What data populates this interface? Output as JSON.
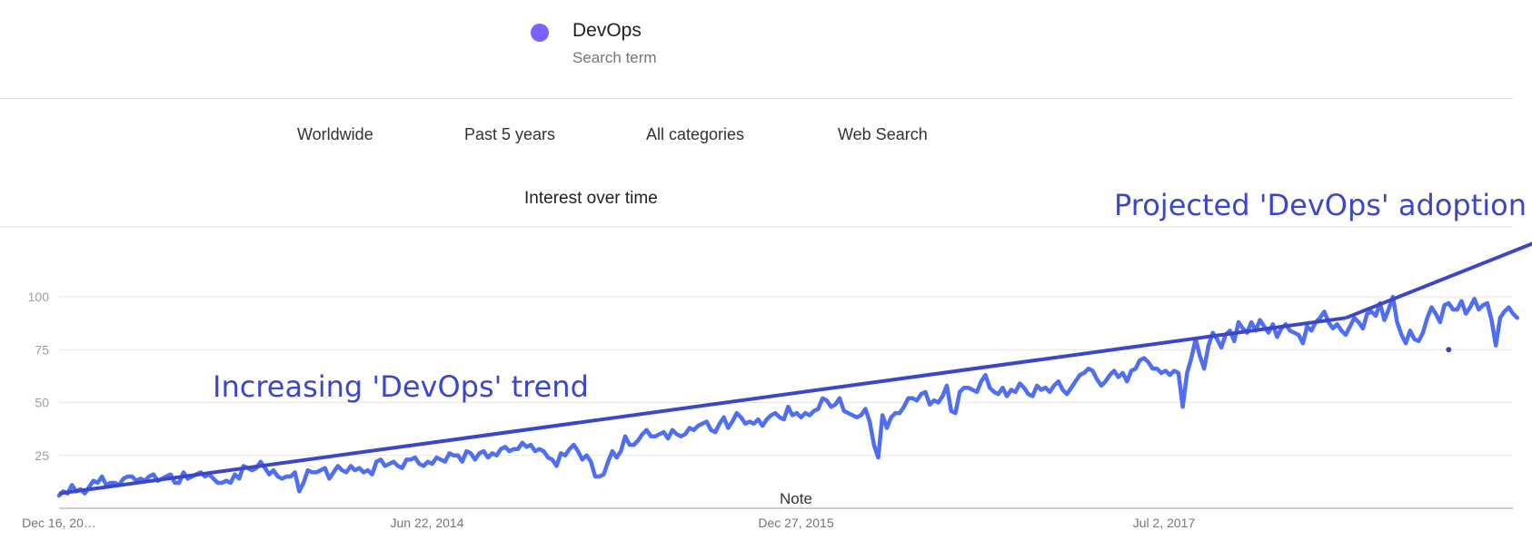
{
  "legend": {
    "term": "DevOps",
    "sublabel": "Search term",
    "color": "#7b61ff"
  },
  "filters": {
    "geo": "Worldwide",
    "time": "Past 5 years",
    "category": "All categories",
    "search_type": "Web Search"
  },
  "chart_title": "Interest over time",
  "chart_data": {
    "type": "line",
    "title": "Interest over time",
    "xlabel": "",
    "ylabel": "",
    "x_ticks": [
      "Dec 16, 20…",
      "Jun 22, 2014",
      "Dec 27, 2015",
      "Jul 2, 2017"
    ],
    "y_ticks": [
      25,
      50,
      75,
      100
    ],
    "ylim": [
      0,
      100
    ],
    "grid": true,
    "note_label": "Note",
    "series": [
      {
        "name": "DevOps",
        "color": "#4f6ef2",
        "values": [
          6,
          8,
          7,
          11,
          8,
          9,
          7,
          10,
          13,
          12,
          15,
          11,
          12,
          12,
          11,
          14,
          15,
          15,
          13,
          14,
          13,
          15,
          16,
          13,
          14,
          15,
          16,
          12,
          12,
          17,
          14,
          15,
          16,
          17,
          15,
          16,
          14,
          12,
          12,
          13,
          12,
          16,
          14,
          20,
          19,
          18,
          19,
          22,
          19,
          16,
          18,
          15,
          14,
          15,
          15,
          17,
          8,
          12,
          18,
          17,
          17,
          18,
          19,
          14,
          17,
          20,
          18,
          17,
          20,
          18,
          19,
          17,
          18,
          16,
          22,
          23,
          20,
          21,
          22,
          20,
          19,
          23,
          23,
          24,
          21,
          20,
          22,
          21,
          24,
          23,
          22,
          26,
          25,
          25,
          22,
          27,
          26,
          23,
          26,
          27,
          24,
          26,
          25,
          28,
          29,
          27,
          28,
          28,
          31,
          29,
          30,
          27,
          28,
          27,
          24,
          23,
          20,
          26,
          25,
          28,
          30,
          27,
          23,
          25,
          22,
          15,
          15,
          16,
          22,
          27,
          24,
          27,
          34,
          30,
          30,
          32,
          35,
          37,
          34,
          34,
          35,
          36,
          33,
          37,
          35,
          34,
          35,
          38,
          37,
          39,
          40,
          41,
          37,
          36,
          40,
          43,
          38,
          41,
          45,
          43,
          40,
          41,
          40,
          42,
          39,
          42,
          44,
          45,
          43,
          42,
          48,
          44,
          45,
          43,
          45,
          44,
          46,
          47,
          52,
          51,
          48,
          49,
          52,
          46,
          45,
          44,
          43,
          44,
          47,
          41,
          30,
          24,
          44,
          38,
          43,
          45,
          45,
          48,
          52,
          52,
          51,
          54,
          55,
          49,
          51,
          50,
          53,
          58,
          46,
          45,
          55,
          57,
          57,
          56,
          55,
          60,
          63,
          57,
          55,
          54,
          57,
          53,
          56,
          55,
          59,
          57,
          54,
          53,
          58,
          56,
          57,
          55,
          58,
          60,
          56,
          54,
          57,
          60,
          63,
          64,
          66,
          65,
          61,
          58,
          60,
          63,
          65,
          62,
          64,
          60,
          65,
          66,
          70,
          71,
          69,
          66,
          66,
          64,
          65,
          63,
          65,
          64,
          48,
          64,
          71,
          80,
          72,
          66,
          77,
          83,
          80,
          76,
          82,
          84,
          79,
          88,
          85,
          83,
          88,
          84,
          89,
          86,
          83,
          87,
          81,
          85,
          87,
          84,
          83,
          82,
          78,
          86,
          84,
          88,
          90,
          93,
          88,
          85,
          87,
          84,
          82,
          86,
          90,
          88,
          85,
          92,
          93,
          91,
          97,
          89,
          94,
          100,
          88,
          82,
          78,
          84,
          80,
          79,
          83,
          90,
          95,
          92,
          88,
          96,
          97,
          94,
          94,
          98,
          92,
          95,
          99,
          94,
          96,
          97,
          89,
          77,
          90,
          93,
          95,
          92,
          90
        ]
      }
    ],
    "annotations": [
      {
        "text": "Increasing 'DevOps' trend",
        "kind": "trendline",
        "points": [
          [
            0,
            7
          ],
          [
            300,
            90
          ]
        ]
      },
      {
        "text": "Projected 'DevOps' adoption",
        "kind": "projection",
        "points": [
          [
            300,
            90
          ],
          [
            352,
            132
          ]
        ]
      }
    ],
    "annotation_color": "#3b46c9",
    "extra_point": {
      "x": 324,
      "y": 75
    }
  }
}
